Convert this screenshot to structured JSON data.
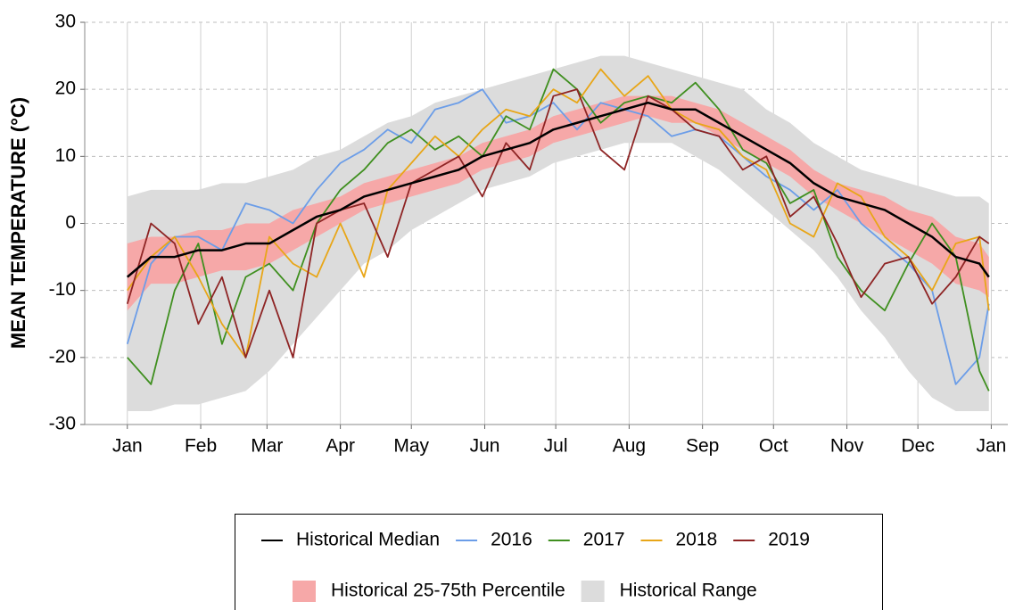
{
  "chart_data": {
    "type": "line",
    "y_label": "MEAN TEMPERATURE (°C)",
    "x": [
      0,
      10,
      20,
      30,
      40,
      50,
      60,
      70,
      80,
      90,
      100,
      110,
      120,
      130,
      140,
      150,
      160,
      170,
      180,
      190,
      200,
      210,
      220,
      230,
      240,
      250,
      260,
      270,
      280,
      290,
      300,
      310,
      320,
      330,
      340,
      350,
      360,
      364
    ],
    "xlim": [
      -18,
      372
    ],
    "xticks": [
      {
        "value": 0,
        "label": "Jan"
      },
      {
        "value": 31,
        "label": "Feb"
      },
      {
        "value": 59,
        "label": "Mar"
      },
      {
        "value": 90,
        "label": "Apr"
      },
      {
        "value": 120,
        "label": "May"
      },
      {
        "value": 151,
        "label": "Jun"
      },
      {
        "value": 181,
        "label": "Jul"
      },
      {
        "value": 212,
        "label": "Aug"
      },
      {
        "value": 243,
        "label": "Sep"
      },
      {
        "value": 273,
        "label": "Oct"
      },
      {
        "value": 304,
        "label": "Nov"
      },
      {
        "value": 334,
        "label": "Dec"
      },
      {
        "value": 365,
        "label": "Jan"
      }
    ],
    "ylim": [
      -30,
      30
    ],
    "yticks": [
      -30,
      -20,
      -10,
      0,
      10,
      20,
      30
    ],
    "grid": true,
    "bands": [
      {
        "name": "Historical Range",
        "color": "#dcdcdc",
        "low": [
          -28,
          -28,
          -27,
          -27,
          -26,
          -25,
          -22,
          -18,
          -14,
          -10,
          -6,
          -4,
          -1,
          1,
          3,
          5,
          6,
          7,
          9,
          10,
          11,
          12,
          12,
          12,
          10,
          8,
          5,
          2,
          -1,
          -4,
          -8,
          -13,
          -17,
          -22,
          -26,
          -28,
          -28,
          -28
        ],
        "high": [
          4,
          5,
          5,
          5,
          6,
          6,
          7,
          8,
          10,
          11,
          13,
          15,
          16,
          18,
          19,
          20,
          21,
          22,
          23,
          24,
          25,
          25,
          24,
          23,
          22,
          21,
          20,
          17,
          15,
          12,
          10,
          8,
          7,
          6,
          5,
          4,
          4,
          3
        ]
      },
      {
        "name": "Historical 25-75th Percentile",
        "color": "#f6a8a8",
        "low": [
          -13,
          -9,
          -9,
          -8,
          -7,
          -7,
          -6,
          -4,
          -2,
          0,
          2,
          3,
          4,
          5,
          6,
          8,
          9,
          10,
          12,
          13,
          14,
          15,
          16,
          15,
          15,
          13,
          11,
          9,
          7,
          4,
          2,
          0,
          -2,
          -4,
          -6,
          -9,
          -10,
          -11
        ],
        "high": [
          -3,
          -2,
          -2,
          -1,
          -1,
          0,
          0,
          2,
          3,
          4,
          6,
          7,
          8,
          9,
          10,
          12,
          13,
          14,
          16,
          17,
          18,
          19,
          19,
          19,
          18,
          17,
          15,
          13,
          11,
          8,
          6,
          5,
          4,
          2,
          1,
          -2,
          -3,
          -5
        ]
      }
    ],
    "series": [
      {
        "name": "Historical Median",
        "color": "#000000",
        "values": [
          -8,
          -5,
          -5,
          -4,
          -4,
          -3,
          -3,
          -1,
          1,
          2,
          4,
          5,
          6,
          7,
          8,
          10,
          11,
          12,
          14,
          15,
          16,
          17,
          18,
          17,
          17,
          15,
          13,
          11,
          9,
          6,
          4,
          3,
          2,
          0,
          -2,
          -5,
          -6,
          -8
        ]
      },
      {
        "name": "2016",
        "color": "#6b9de8",
        "values": [
          -18,
          -6,
          -2,
          -2,
          -4,
          3,
          2,
          0,
          5,
          9,
          11,
          14,
          12,
          17,
          18,
          20,
          15,
          16,
          18,
          14,
          18,
          17,
          16,
          13,
          14,
          13,
          10,
          7,
          5,
          2,
          5,
          0,
          -3,
          -6,
          -10,
          -24,
          -20,
          -12
        ]
      },
      {
        "name": "2017",
        "color": "#3f8f1f",
        "values": [
          -20,
          -24,
          -10,
          -3,
          -18,
          -8,
          -6,
          -10,
          0,
          5,
          8,
          12,
          14,
          11,
          13,
          10,
          16,
          14,
          23,
          20,
          15,
          18,
          19,
          18,
          21,
          17,
          11,
          9,
          3,
          5,
          -5,
          -10,
          -13,
          -6,
          0,
          -5,
          -22,
          -25
        ]
      },
      {
        "name": "2018",
        "color": "#e8a618",
        "values": [
          -10,
          -5,
          -2,
          -8,
          -15,
          -20,
          -2,
          -6,
          -8,
          0,
          -8,
          5,
          9,
          13,
          10,
          14,
          17,
          16,
          20,
          18,
          23,
          19,
          22,
          17,
          15,
          14,
          10,
          8,
          0,
          -2,
          6,
          4,
          -2,
          -5,
          -10,
          -3,
          -2,
          -13
        ]
      },
      {
        "name": "2019",
        "color": "#8e2424",
        "values": [
          -12,
          0,
          -3,
          -15,
          -8,
          -20,
          -10,
          -20,
          0,
          2,
          3,
          -5,
          6,
          8,
          10,
          4,
          12,
          8,
          19,
          20,
          11,
          8,
          19,
          17,
          14,
          13,
          8,
          10,
          1,
          4,
          -3,
          -11,
          -6,
          -5,
          -12,
          -8,
          -2,
          -3
        ]
      }
    ]
  }
}
